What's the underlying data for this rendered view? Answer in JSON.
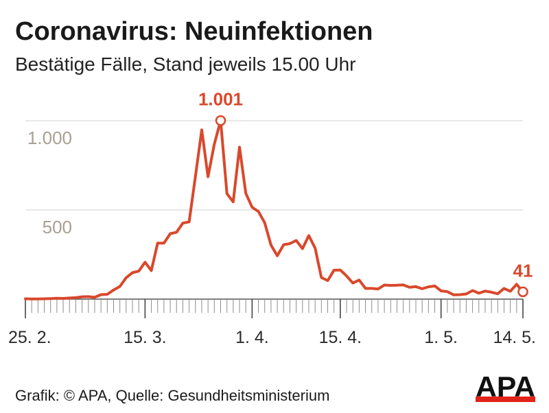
{
  "chart_data": {
    "type": "line",
    "title": "Coronavirus: Neuinfektionen",
    "subtitle": "Bestätige Fälle, Stand jeweils 15.00 Uhr",
    "ylim": [
      0,
      1000
    ],
    "yticks": [
      {
        "value": 500,
        "label": "500"
      },
      {
        "value": 1000,
        "label": "1.000"
      }
    ],
    "xticks": [
      "25. 2.",
      "15. 3.",
      "1. 4.",
      "15. 4.",
      "1. 5.",
      "14. 5."
    ],
    "grid": true,
    "legend": "none",
    "colors": {
      "line": "#d9482b",
      "grid": "#d9d9d9",
      "y_tick_label": "#a8a094",
      "annotation": "#d9482b",
      "axis": "#555555"
    },
    "x": [
      "25. 2.",
      "26. 2.",
      "27. 2.",
      "28. 2.",
      "29. 2.",
      "1. 3.",
      "2. 3.",
      "3. 3.",
      "4. 3.",
      "5. 3.",
      "6. 3.",
      "7. 3.",
      "8. 3.",
      "9. 3.",
      "10. 3.",
      "11. 3.",
      "12. 3.",
      "13. 3.",
      "14. 3.",
      "15. 3.",
      "16. 3.",
      "17. 3.",
      "18. 3.",
      "19. 3.",
      "20. 3.",
      "21. 3.",
      "22. 3.",
      "23. 3.",
      "24. 3.",
      "25. 3.",
      "26. 3.",
      "27. 3.",
      "28. 3.",
      "29. 3.",
      "30. 3.",
      "31. 3.",
      "1. 4.",
      "2. 4.",
      "3. 4.",
      "4. 4.",
      "5. 4.",
      "6. 4.",
      "7. 4.",
      "8. 4.",
      "9. 4.",
      "10. 4.",
      "11. 4.",
      "12. 4.",
      "13. 4.",
      "14. 4.",
      "15. 4.",
      "16. 4.",
      "17. 4.",
      "18. 4.",
      "19. 4.",
      "20. 4.",
      "21. 4.",
      "22. 4.",
      "23. 4.",
      "24. 4.",
      "25. 4.",
      "26. 4.",
      "27. 4.",
      "28. 4.",
      "29. 4.",
      "30. 4.",
      "1. 5.",
      "2. 5.",
      "3. 5.",
      "4. 5.",
      "5. 5.",
      "6. 5.",
      "7. 5.",
      "8. 5.",
      "9. 5.",
      "10. 5.",
      "11. 5.",
      "12. 5.",
      "13. 5.",
      "14. 5."
    ],
    "series": [
      {
        "values": [
          2,
          1,
          1,
          2,
          3,
          5,
          4,
          6,
          8,
          13,
          14,
          10,
          25,
          27,
          51,
          71,
          120,
          148,
          157,
          207,
          160,
          314,
          314,
          367,
          375,
          426,
          433,
          689,
          949,
          686,
          869,
          1001,
          591,
          545,
          852,
          593,
          515,
          491,
          428,
          303,
          243,
          305,
          311,
          329,
          283,
          356,
          286,
          121,
          104,
          162,
          163,
          130,
          90,
          107,
          60,
          60,
          57,
          79,
          77,
          78,
          80,
          66,
          70,
          58,
          69,
          74,
          46,
          42,
          24,
          25,
          29,
          48,
          33,
          45,
          39,
          30,
          60,
          44,
          83,
          41
        ]
      }
    ],
    "annotations": [
      {
        "x": "27. 3.",
        "y": 1001,
        "label": "1.001"
      },
      {
        "x": "14. 5.",
        "y": 41,
        "label": "41"
      }
    ]
  },
  "footer": {
    "credit": "Grafik: © APA, Quelle: Gesundheitsministerium"
  },
  "logo": {
    "text": "APA",
    "colors": {
      "letters": "#111111",
      "bar": "#e2231a"
    }
  }
}
